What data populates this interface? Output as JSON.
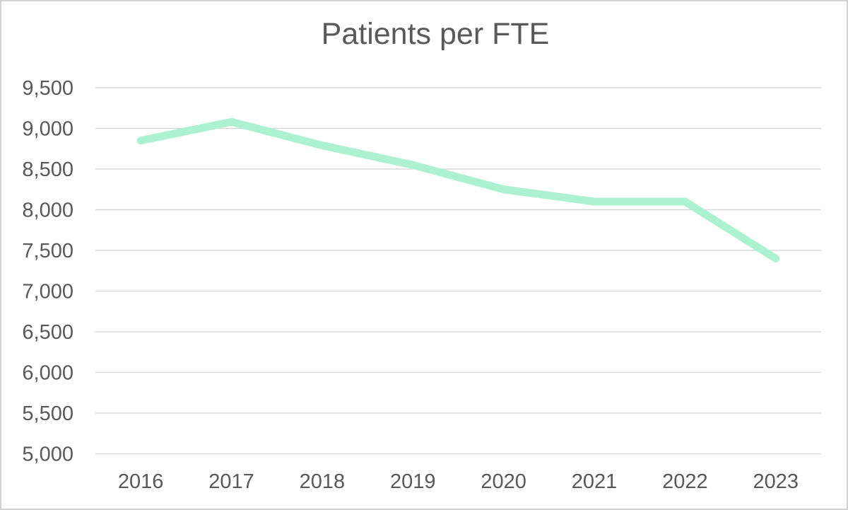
{
  "title": "Patients per FTE",
  "chart_data": {
    "type": "line",
    "title": "Patients per FTE",
    "categories": [
      "2016",
      "2017",
      "2018",
      "2019",
      "2020",
      "2021",
      "2022",
      "2023"
    ],
    "series": [
      {
        "name": "Patients per FTE",
        "values": [
          8850,
          9080,
          8790,
          8550,
          8250,
          8100,
          8100,
          7400
        ]
      }
    ],
    "xlabel": "",
    "ylabel": "",
    "ylim": [
      5000,
      9500
    ],
    "ytick_interval": 500,
    "ytick_labels": [
      "5,000",
      "5,500",
      "6,000",
      "6,500",
      "7,000",
      "7,500",
      "8,000",
      "8,500",
      "9,000",
      "9,500"
    ],
    "grid": true,
    "legend": "none",
    "colors": {
      "line": "#ACF2D0",
      "gridline": "#D9D9D9",
      "text": "#595959",
      "frame": "#D3D3D3",
      "background": "#FFFFFF"
    }
  }
}
